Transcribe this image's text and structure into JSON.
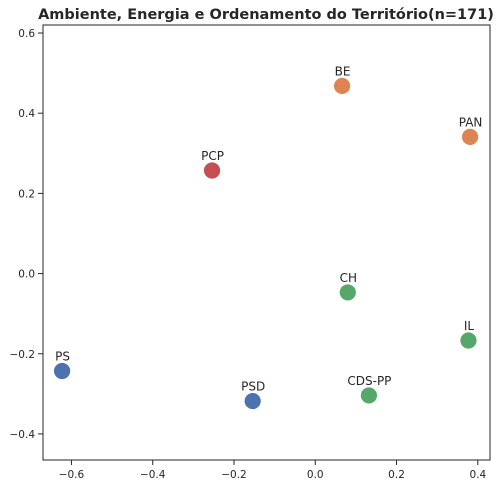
{
  "chart_data": {
    "type": "scatter",
    "title": "Ambiente, Energia e Ordenamento do Território(n=171)",
    "xlabel": "",
    "ylabel": "",
    "xlim": [
      -0.67,
      0.43
    ],
    "ylim": [
      -0.465,
      0.62
    ],
    "xticks": [
      -0.6,
      -0.4,
      -0.2,
      0.0,
      0.2,
      0.4
    ],
    "xtick_labels": [
      "−0.6",
      "−0.4",
      "−0.2",
      "0.0",
      "0.2",
      "0.4"
    ],
    "yticks": [
      -0.4,
      -0.2,
      0.0,
      0.2,
      0.4,
      0.6
    ],
    "ytick_labels": [
      "−0.4",
      "−0.2",
      "0.0",
      "0.2",
      "0.4",
      "0.6"
    ],
    "grid": false,
    "points": [
      {
        "label": "BE",
        "x": 0.066,
        "y": 0.468,
        "color": "#dd8452"
      },
      {
        "label": "PAN",
        "x": 0.381,
        "y": 0.341,
        "color": "#dd8452"
      },
      {
        "label": "PCP",
        "x": -0.254,
        "y": 0.257,
        "color": "#c44e52"
      },
      {
        "label": "CH",
        "x": 0.08,
        "y": -0.047,
        "color": "#55a868"
      },
      {
        "label": "IL",
        "x": 0.377,
        "y": -0.167,
        "color": "#55a868"
      },
      {
        "label": "PS",
        "x": -0.623,
        "y": -0.243,
        "color": "#4c72b0"
      },
      {
        "label": "PSD",
        "x": -0.154,
        "y": -0.318,
        "color": "#4c72b0"
      },
      {
        "label": "CDS-PP",
        "x": 0.132,
        "y": -0.304,
        "color": "#55a868"
      }
    ]
  }
}
